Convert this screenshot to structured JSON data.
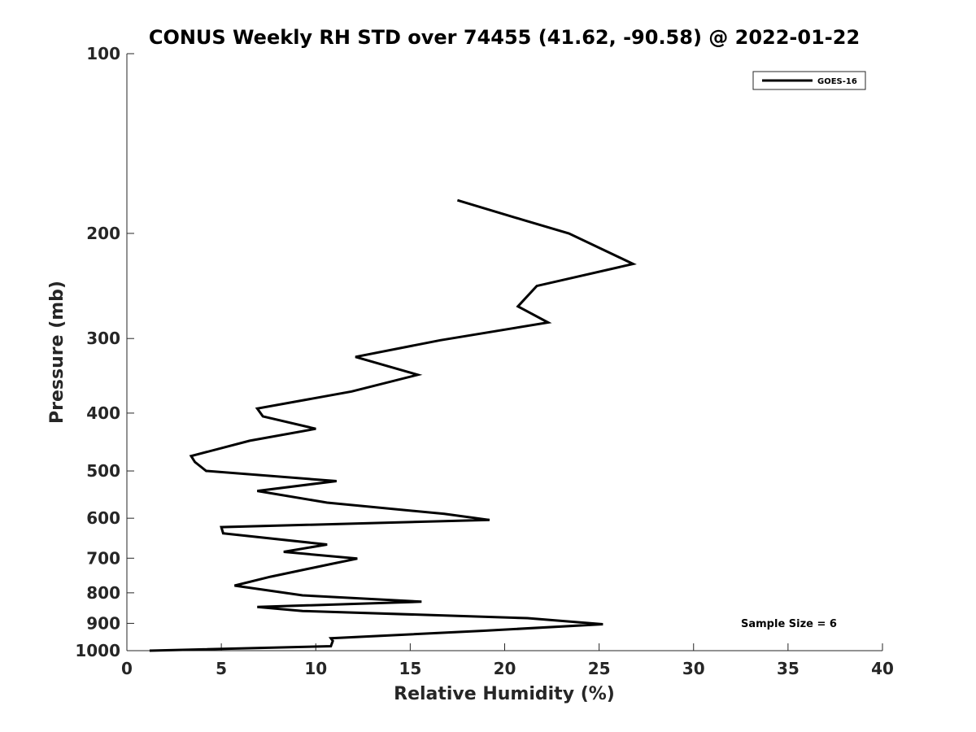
{
  "chart_data": {
    "type": "line",
    "title": "CONUS Weekly RH STD over 74455 (41.62, -90.58) @ 2022-01-22",
    "xlabel": "Relative Humidity (%)",
    "ylabel": "Pressure (mb)",
    "xlim": [
      0,
      40
    ],
    "ylim": [
      100,
      1000
    ],
    "yscale": "log",
    "y_reversed": true,
    "x_ticks": [
      0,
      5,
      10,
      15,
      20,
      25,
      30,
      35,
      40
    ],
    "x_tick_labels": [
      "0",
      "5",
      "10",
      "15",
      "20",
      "25",
      "30",
      "35",
      "40"
    ],
    "y_ticks": [
      100,
      200,
      300,
      400,
      500,
      600,
      700,
      800,
      900,
      1000
    ],
    "y_tick_labels": [
      "100",
      "200",
      "300",
      "400",
      "500",
      "600",
      "700",
      "800",
      "900",
      "1000"
    ],
    "grid": false,
    "legend_position": "top-right",
    "annotation": "Sample Size = 6",
    "series": [
      {
        "name": "GOES-16",
        "color": "#000000",
        "x": [
          17.5,
          21.0,
          23.4,
          26.8,
          21.7,
          20.7,
          22.3,
          16.6,
          12.1,
          15.4,
          11.9,
          6.9,
          7.2,
          10.0,
          6.5,
          3.4,
          3.6,
          4.2,
          11.1,
          6.9,
          10.6,
          16.8,
          19.2,
          5.0,
          5.1,
          10.6,
          8.3,
          12.2,
          10.8,
          7.6,
          5.7,
          9.3,
          15.6,
          6.9,
          9.3,
          21.2,
          25.2,
          18.9,
          10.8,
          10.9,
          10.8,
          1.2
        ],
        "y": [
          176,
          190,
          200,
          225,
          245,
          265,
          282,
          302,
          322,
          345,
          368,
          393,
          405,
          425,
          445,
          472,
          483,
          500,
          520,
          540,
          565,
          590,
          604,
          621,
          636,
          664,
          683,
          701,
          716,
          752,
          778,
          808,
          828,
          845,
          858,
          882,
          903,
          926,
          953,
          963,
          983,
          1000
        ]
      }
    ]
  }
}
